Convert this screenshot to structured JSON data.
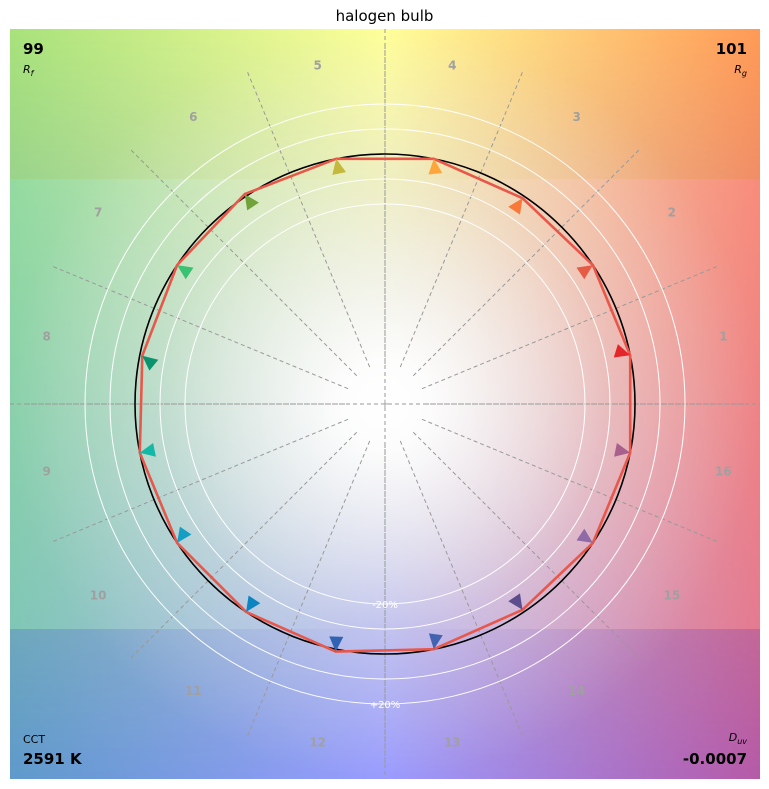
{
  "chart_data": {
    "type": "polar-vector",
    "title": "halogen bulb",
    "metrics": {
      "rf_value": "99",
      "rf_label": "R",
      "rf_sub": "f",
      "rg_value": "101",
      "rg_label": "R",
      "rg_sub": "g",
      "cct_label": "CCT",
      "cct_value": "2591 K",
      "duv_label": "D",
      "duv_sub": "uv",
      "duv_value": "-0.0007"
    },
    "ring_labels": {
      "inner": "-20%",
      "outer": "+20%"
    },
    "hue_bins": [
      "1",
      "2",
      "3",
      "4",
      "5",
      "6",
      "7",
      "8",
      "9",
      "10",
      "11",
      "12",
      "13",
      "14",
      "15",
      "16"
    ],
    "hue_bin_colors": [
      "#e3262a",
      "#e75b45",
      "#f9793a",
      "#fea63c",
      "#c4b83d",
      "#72a23b",
      "#3ac272",
      "#0b9370",
      "#14b8a6",
      "#149ec4",
      "#0b84c0",
      "#3263b3",
      "#4363b0",
      "#5c4e8e",
      "#8e6aa6",
      "#a95f8c"
    ],
    "reference_radius": 1.0,
    "test_radii": [
      1.0,
      1.0,
      0.99,
      1.0,
      1.0,
      1.01,
      1.0,
      0.99,
      1.0,
      1.0,
      1.0,
      1.01,
      1.0,
      0.99,
      1.0,
      1.0
    ],
    "arrow_radii": [
      0.94,
      0.93,
      0.91,
      0.9,
      0.9,
      0.91,
      0.92,
      0.93,
      0.94,
      0.92,
      0.92,
      0.91,
      0.91,
      0.92,
      0.92,
      0.93
    ],
    "arrow_angle_offsets": [
      2,
      0,
      0,
      -2,
      0,
      0,
      0,
      2,
      0,
      -2,
      0,
      -1,
      2,
      0,
      0,
      0
    ],
    "ring_scales": [
      0.8,
      0.9,
      1.1,
      1.2
    ]
  }
}
